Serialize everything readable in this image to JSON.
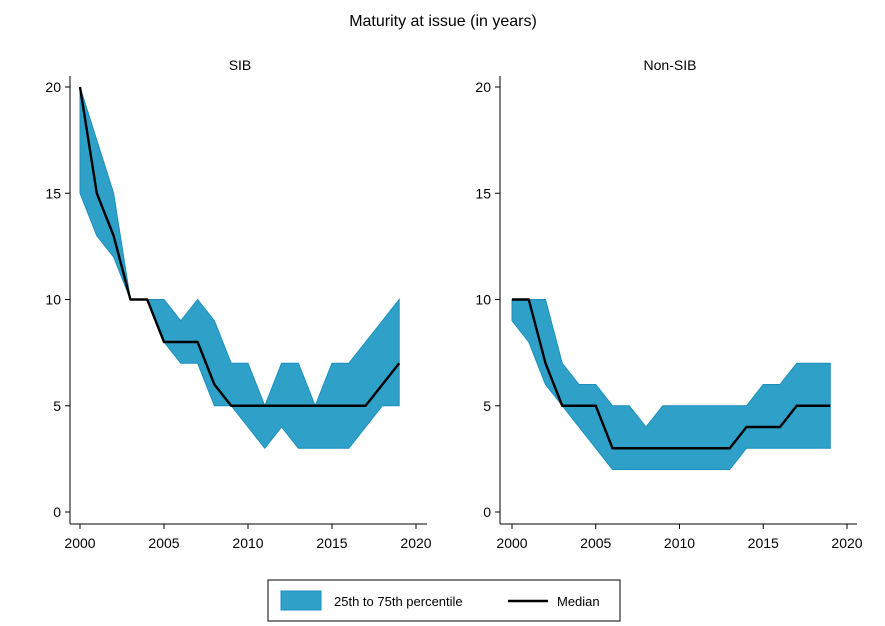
{
  "chart_data": {
    "type": "area",
    "title": "Maturity at issue (in years)",
    "colors": {
      "band": "#2fa0c8",
      "median": "#000000"
    },
    "legend": {
      "placement": "bottom",
      "entries": [
        "25th to 75th percentile",
        "Median"
      ]
    },
    "xlim": [
      2000,
      2020
    ],
    "ylim": [
      0,
      20
    ],
    "xticks": [
      2000,
      2005,
      2010,
      2015,
      2020
    ],
    "yticks": [
      0,
      5,
      10,
      15,
      20
    ],
    "grid": false,
    "panels": [
      {
        "name": "SIB",
        "x": [
          2000,
          2001,
          2002,
          2003,
          2004,
          2005,
          2006,
          2007,
          2008,
          2009,
          2010,
          2011,
          2012,
          2013,
          2014,
          2015,
          2016,
          2017,
          2018,
          2019
        ],
        "p25": [
          15,
          13,
          12,
          10,
          10,
          8,
          7,
          7,
          5,
          5,
          4,
          3,
          4,
          3,
          3,
          3,
          3,
          4,
          5,
          5
        ],
        "median": [
          20,
          15,
          13,
          10,
          10,
          8,
          8,
          8,
          6,
          5,
          5,
          5,
          5,
          5,
          5,
          5,
          5,
          5,
          6,
          7
        ],
        "p75": [
          20,
          17.5,
          15,
          10,
          10,
          10,
          9,
          10,
          9,
          7,
          7,
          5,
          7,
          7,
          5,
          7,
          7,
          8,
          9,
          10
        ]
      },
      {
        "name": "Non-SIB",
        "x": [
          2000,
          2001,
          2002,
          2003,
          2004,
          2005,
          2006,
          2007,
          2008,
          2009,
          2010,
          2011,
          2012,
          2013,
          2014,
          2015,
          2016,
          2017,
          2018,
          2019
        ],
        "p25": [
          9,
          8,
          6,
          5,
          4,
          3,
          2,
          2,
          2,
          2,
          2,
          2,
          2,
          2,
          3,
          3,
          3,
          3,
          3,
          3
        ],
        "median": [
          10,
          10,
          7,
          5,
          5,
          5,
          3,
          3,
          3,
          3,
          3,
          3,
          3,
          3,
          4,
          4,
          4,
          5,
          5,
          5
        ],
        "p75": [
          10,
          10,
          10,
          7,
          6,
          6,
          5,
          5,
          4,
          5,
          5,
          5,
          5,
          5,
          5,
          6,
          6,
          7,
          7,
          7
        ]
      }
    ]
  }
}
